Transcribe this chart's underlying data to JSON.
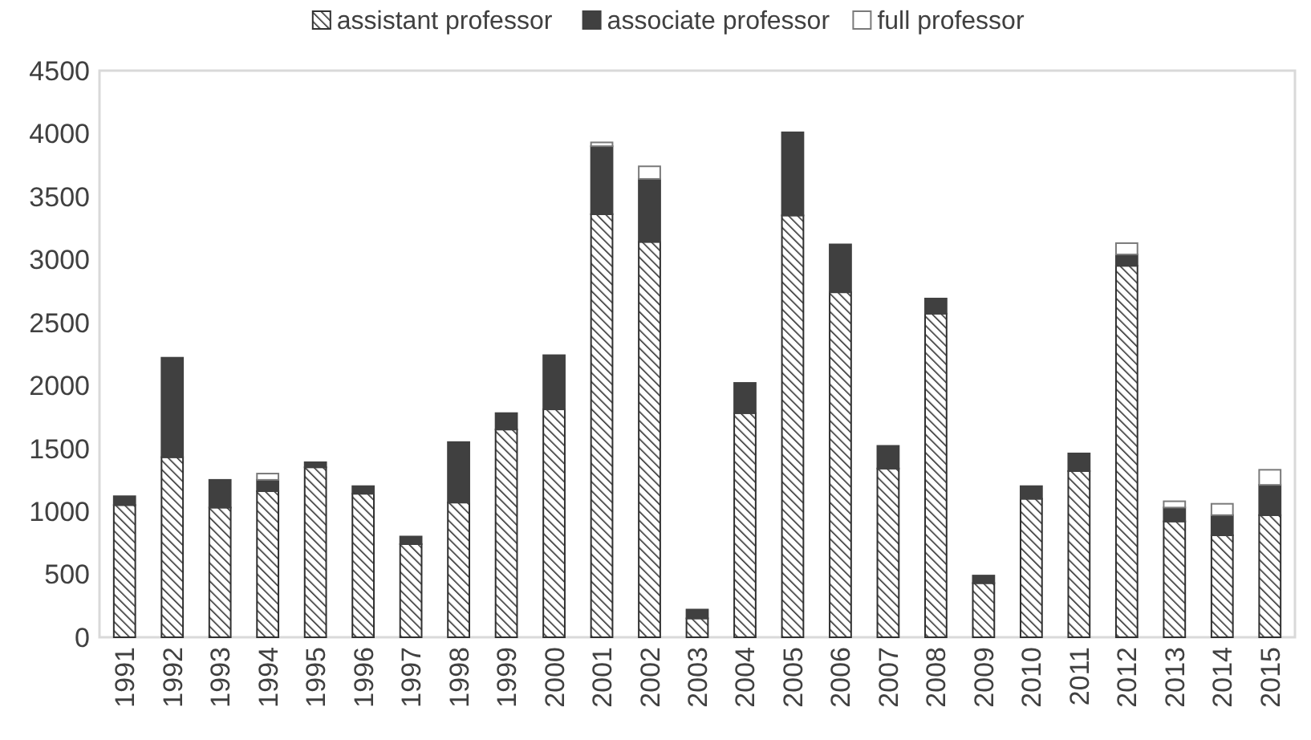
{
  "chart_data": {
    "type": "bar",
    "stacked": true,
    "legend": "top",
    "grid": false,
    "categories": [
      "1991",
      "1992",
      "1993",
      "1994",
      "1995",
      "1996",
      "1997",
      "1998",
      "1999",
      "2000",
      "2001",
      "2002",
      "2003",
      "2004",
      "2005",
      "2006",
      "2007",
      "2008",
      "2009",
      "2010",
      "2011",
      "2012",
      "2013",
      "2014",
      "2015"
    ],
    "ylim": [
      0,
      4500
    ],
    "yticks": [
      0,
      500,
      1000,
      1500,
      2000,
      2500,
      3000,
      3500,
      4000,
      4500
    ],
    "series": [
      {
        "name": "assistant professor",
        "color": "#303030",
        "values": [
          1050,
          1430,
          1030,
          1160,
          1350,
          1140,
          740,
          1070,
          1650,
          1810,
          3360,
          3140,
          150,
          1780,
          3350,
          2740,
          1340,
          2570,
          430,
          1100,
          1320,
          2950,
          920,
          810,
          970
        ]
      },
      {
        "name": "associate professor",
        "color": "#404040",
        "values": [
          70,
          790,
          220,
          90,
          40,
          60,
          60,
          480,
          130,
          430,
          540,
          500,
          70,
          240,
          660,
          380,
          180,
          120,
          60,
          100,
          140,
          90,
          110,
          160,
          240
        ]
      },
      {
        "name": "full professor",
        "color": "#ffffff",
        "values": [
          0,
          0,
          0,
          50,
          0,
          0,
          0,
          0,
          0,
          0,
          30,
          100,
          0,
          0,
          0,
          0,
          0,
          0,
          0,
          0,
          0,
          90,
          50,
          90,
          120
        ]
      }
    ]
  }
}
